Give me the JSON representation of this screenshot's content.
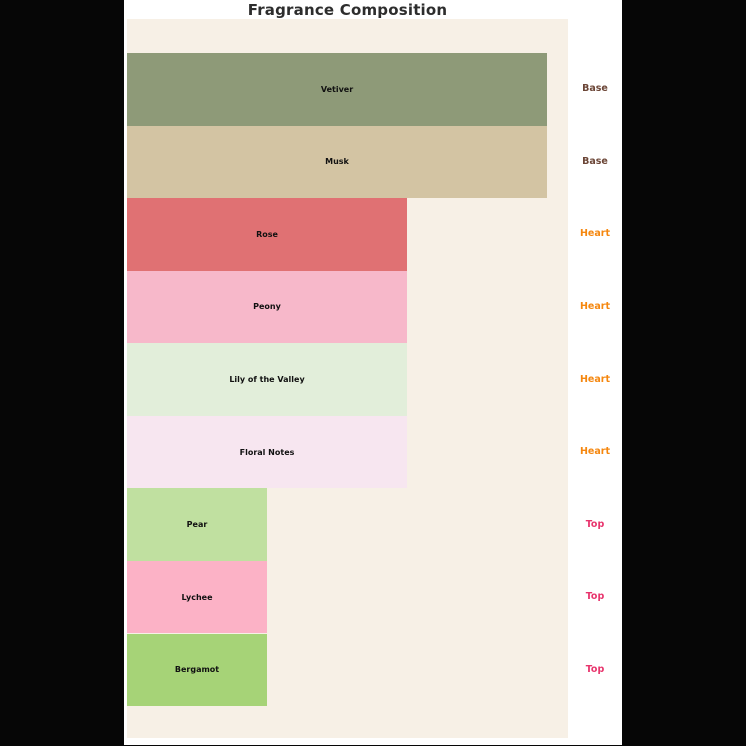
{
  "title": "Fragrance Composition",
  "chart_data": {
    "type": "bar",
    "orientation": "horizontal",
    "title": "Fragrance Composition",
    "categories": [
      "Vetiver",
      "Musk",
      "Rose",
      "Peony",
      "Lily of the Valley",
      "Floral Notes",
      "Pear",
      "Lychee",
      "Bergamot"
    ],
    "values": [
      3,
      3,
      2,
      2,
      2,
      2,
      1,
      1,
      1
    ],
    "value_note": "No numeric axis shown; values are relative bar widths estimated from pixels (ratio 3:2:1 for Base:Heart:Top)",
    "groups": [
      "Base",
      "Base",
      "Heart",
      "Heart",
      "Heart",
      "Heart",
      "Top",
      "Top",
      "Top"
    ],
    "bar_colors": [
      "#8e9a78",
      "#d3c4a3",
      "#e07173",
      "#f7b8ca",
      "#e2eeda",
      "#f7e6f0",
      "#c0e0a0",
      "#fcb2c6",
      "#a6d377"
    ],
    "group_label_colors": {
      "Base": "#6b4536",
      "Heart": "#f5870f",
      "Top": "#e8356d"
    },
    "xlim": [
      0,
      3.15
    ],
    "grid": false,
    "legend_position": "none",
    "axes_background": "#f7f0e6",
    "figure_background": "#ffffff",
    "page_background": "#060606",
    "bar_label_position": "center-inside",
    "group_label_position": "right-outside"
  }
}
